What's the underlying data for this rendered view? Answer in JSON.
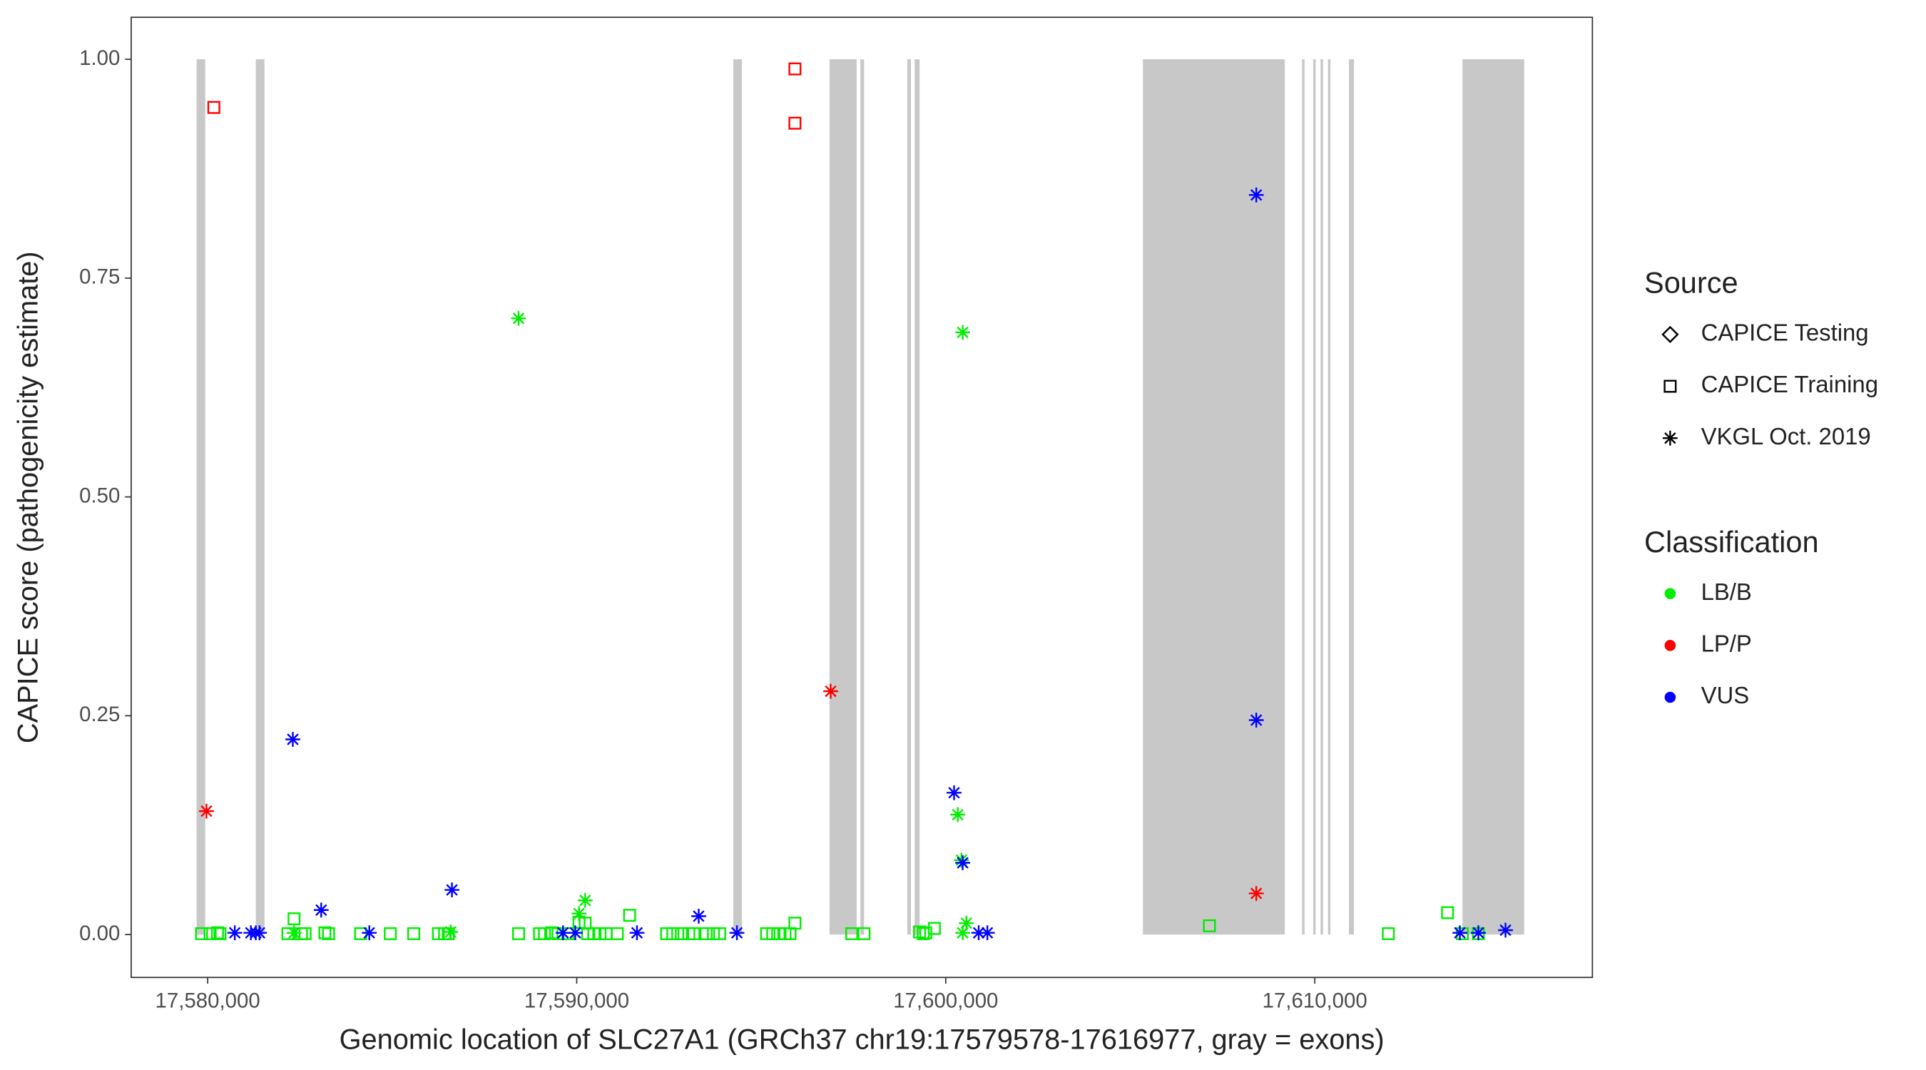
{
  "chart_data": {
    "type": "scatter",
    "xlabel": "Genomic location of SLC27A1 (GRCh37 chr19:17579578-17616977, gray = exons)",
    "ylabel": "CAPICE score (pathogenicity estimate)",
    "xlim": [
      17577927,
      17617523
    ],
    "ylim": [
      -0.049,
      1.048
    ],
    "xticks": [
      {
        "value": 17580000,
        "label": "17,580,000"
      },
      {
        "value": 17590000,
        "label": "17,590,000"
      },
      {
        "value": 17600000,
        "label": "17,600,000"
      },
      {
        "value": 17610000,
        "label": "17,610,000"
      }
    ],
    "yticks": [
      {
        "value": 0,
        "label": "0.00"
      },
      {
        "value": 0.25,
        "label": "0.25"
      },
      {
        "value": 0.5,
        "label": "0.50"
      },
      {
        "value": 0.75,
        "label": "0.75"
      },
      {
        "value": 1,
        "label": "1.00"
      }
    ],
    "exon_color": "#c8c8c8",
    "exons": [
      [
        17579699,
        17579933
      ],
      [
        17581304,
        17581538
      ],
      [
        17594243,
        17594477
      ],
      [
        17596850,
        17597585
      ],
      [
        17597686,
        17597786
      ],
      [
        17598957,
        17599057
      ],
      [
        17599158,
        17599291
      ],
      [
        17605343,
        17609188
      ],
      [
        17609656,
        17609723
      ],
      [
        17609957,
        17610023
      ],
      [
        17610157,
        17610224
      ],
      [
        17610358,
        17610425
      ],
      [
        17610926,
        17611060
      ],
      [
        17614002,
        17615674
      ]
    ],
    "legend": {
      "source": {
        "title": "Source",
        "entries": [
          {
            "name": "CAPICE Testing",
            "shape": "diamond"
          },
          {
            "name": "CAPICE Training",
            "shape": "square"
          },
          {
            "name": "VKGL Oct. 2019",
            "shape": "star"
          }
        ]
      },
      "classification": {
        "title": "Classification",
        "entries": [
          {
            "name": "LB/B",
            "color": "#00ee00"
          },
          {
            "name": "LP/P",
            "color": "#ff0000"
          },
          {
            "name": "VUS",
            "color": "#0000ff"
          }
        ]
      }
    },
    "series": [
      {
        "shape": "square",
        "color": "#00ee00",
        "x": [
          17579833,
          17580067,
          17580267,
          17580334,
          17582173,
          17582340,
          17582541,
          17582641,
          17583176,
          17583276,
          17584145,
          17584948,
          17585583,
          17586252,
          17586419,
          17586519,
          17588424,
          17588993,
          17589127,
          17589327,
          17589494,
          17589762,
          17590062,
          17590229,
          17590296,
          17590463,
          17590631,
          17590798,
          17591099,
          17591433,
          17592436,
          17592604,
          17592837,
          17593038,
          17593171,
          17593508,
          17593706,
          17593873,
          17595144,
          17595311,
          17595511,
          17595645,
          17595779,
          17595913,
          17597451,
          17597786,
          17599290,
          17599391,
          17599458,
          17599692,
          17607145,
          17611993,
          17613597,
          17613998,
          17614433
        ],
        "y": [
          0.001,
          0.001,
          0.002,
          0.001,
          0.001,
          0.018,
          0.001,
          0.001,
          0.002,
          0.001,
          0.001,
          0.001,
          0.001,
          0.001,
          0.001,
          0.001,
          0.001,
          0.001,
          0.001,
          0.002,
          0.001,
          0.001,
          0.014,
          0.013,
          0.001,
          0.001,
          0.001,
          0.001,
          0.001,
          0.022,
          0.001,
          0.001,
          0.001,
          0.001,
          0.001,
          0.001,
          0.001,
          0.001,
          0.001,
          0.001,
          0.001,
          0.001,
          0.001,
          0.013,
          0.001,
          0.001,
          0.003,
          0.001,
          0.002,
          0.007,
          0.01,
          0.001,
          0.025,
          0.001,
          0.001
        ]
      },
      {
        "shape": "square",
        "color": "#ff0000",
        "x": [
          17580167,
          17595913,
          17595913
        ],
        "y": [
          0.945,
          0.989,
          0.927
        ]
      },
      {
        "shape": "star",
        "color": "#00ee00",
        "x": [
          17588424,
          17600459,
          17600325,
          17600425,
          17590229,
          17590062,
          17600559,
          17586586,
          17582340,
          17600459
        ],
        "y": [
          0.704,
          0.688,
          0.137,
          0.085,
          0.039,
          0.024,
          0.013,
          0.003,
          0.002,
          0.002
        ]
      },
      {
        "shape": "star",
        "color": "#ff0000",
        "x": [
          17579967,
          17596882,
          17608415
        ],
        "y": [
          0.141,
          0.278,
          0.047
        ]
      },
      {
        "shape": "star",
        "color": "#0000ff",
        "x": [
          17582307,
          17583076,
          17586619,
          17593305,
          17600225,
          17600459,
          17608415,
          17608415,
          17580735,
          17581170,
          17581304,
          17581404,
          17584379,
          17589628,
          17589962,
          17591633,
          17594341,
          17600893,
          17601127,
          17613931,
          17614433,
          17615168
        ],
        "y": [
          0.223,
          0.028,
          0.051,
          0.021,
          0.162,
          0.082,
          0.845,
          0.245,
          0.002,
          0.002,
          0.002,
          0.002,
          0.002,
          0.002,
          0.002,
          0.002,
          0.002,
          0.002,
          0.002,
          0.002,
          0.002,
          0.005
        ]
      }
    ]
  }
}
